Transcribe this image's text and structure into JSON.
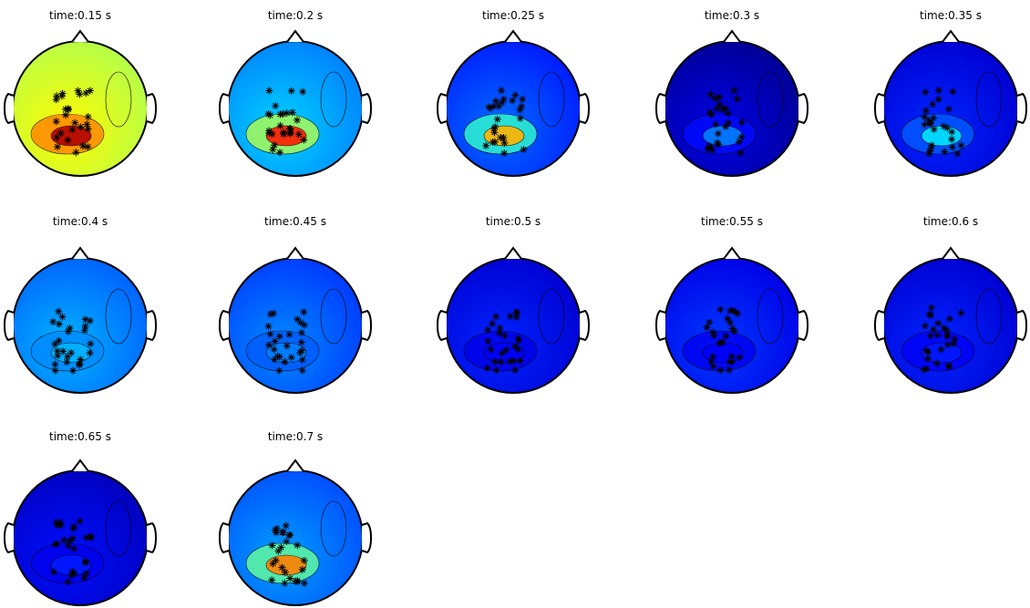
{
  "figure": {
    "panels": [
      {
        "title": "time:0.15 s",
        "level": 0.55,
        "hot": 0.95
      },
      {
        "title": "time:0.2 s",
        "level": 0.25,
        "hot": 0.85
      },
      {
        "title": "time:0.25 s",
        "level": 0.15,
        "hot": 0.7
      },
      {
        "title": "time:0.3 s",
        "level": 0.02,
        "hot": 0.25
      },
      {
        "title": "time:0.35 s",
        "level": 0.08,
        "hot": 0.35
      },
      {
        "title": "time:0.4 s",
        "level": 0.22,
        "hot": 0.3
      },
      {
        "title": "time:0.45 s",
        "level": 0.18,
        "hot": 0.25
      },
      {
        "title": "time:0.5 s",
        "level": 0.08,
        "hot": 0.12
      },
      {
        "title": "time:0.55 s",
        "level": 0.1,
        "hot": 0.12
      },
      {
        "title": "time:0.6 s",
        "level": 0.08,
        "hot": 0.15
      },
      {
        "title": "time:0.65 s",
        "level": 0.06,
        "hot": 0.15
      },
      {
        "title": "time:0.7 s",
        "level": 0.2,
        "hot": 0.75
      }
    ]
  }
}
